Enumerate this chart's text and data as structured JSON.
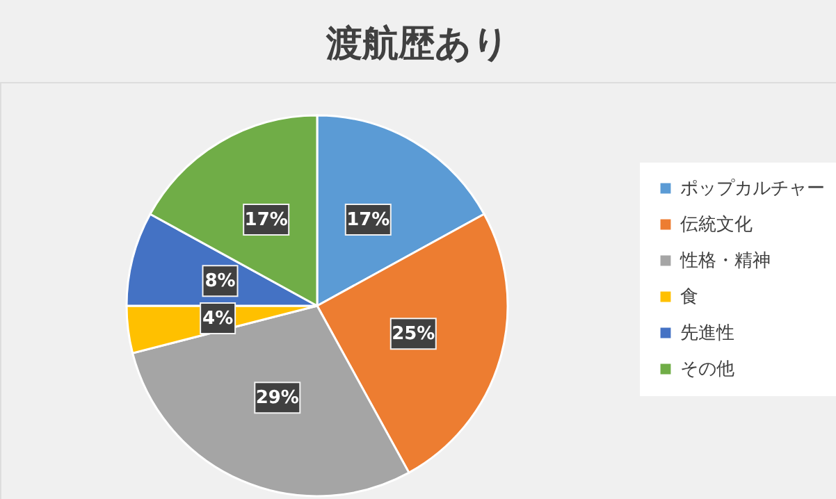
{
  "chart_data": {
    "type": "pie",
    "title": "渡航歴あり",
    "categories": [
      "ポップカルチャー",
      "伝統文化",
      "性格・精神",
      "食",
      "先進性",
      "その他"
    ],
    "values": [
      17,
      25,
      29,
      4,
      8,
      17
    ],
    "colors": [
      "#5b9bd5",
      "#ed7d31",
      "#a5a5a5",
      "#ffc000",
      "#4472c4",
      "#70ad47"
    ],
    "value_labels": [
      "17%",
      "25%",
      "29%",
      "4%",
      "8%",
      "17%"
    ],
    "legend": "right"
  }
}
